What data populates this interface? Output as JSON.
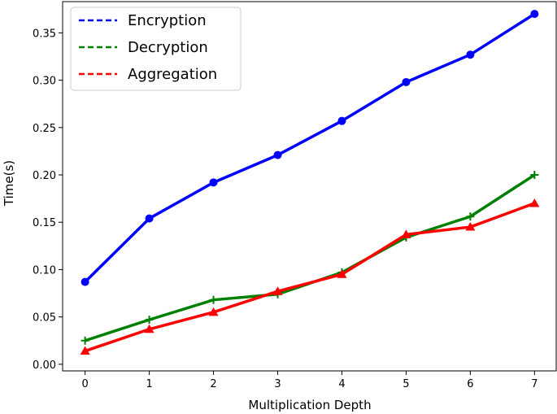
{
  "chart_data": {
    "type": "line",
    "title": "",
    "xlabel": "Multiplication Depth",
    "ylabel": "Time(s)",
    "x": [
      0,
      1,
      2,
      3,
      4,
      5,
      6,
      7
    ],
    "xlim": [
      -0.35,
      7.35
    ],
    "ylim": [
      -0.007,
      0.383
    ],
    "x_ticks": [
      "0",
      "1",
      "2",
      "3",
      "4",
      "5",
      "6",
      "7"
    ],
    "y_ticks": [
      "0.00",
      "0.05",
      "0.10",
      "0.15",
      "0.20",
      "0.25",
      "0.30",
      "0.35"
    ],
    "grid": false,
    "legend_position": "top-left",
    "series": [
      {
        "name": "Encryption",
        "color": "#0000ff",
        "marker": "circle",
        "values": [
          0.087,
          0.154,
          0.192,
          0.221,
          0.257,
          0.298,
          0.327,
          0.37
        ]
      },
      {
        "name": "Decryption",
        "color": "#008000",
        "marker": "plus",
        "values": [
          0.025,
          0.047,
          0.068,
          0.074,
          0.097,
          0.134,
          0.156,
          0.2
        ]
      },
      {
        "name": "Aggregation",
        "color": "#ff0000",
        "marker": "triangle",
        "values": [
          0.014,
          0.037,
          0.055,
          0.077,
          0.095,
          0.137,
          0.145,
          0.17
        ]
      }
    ]
  }
}
